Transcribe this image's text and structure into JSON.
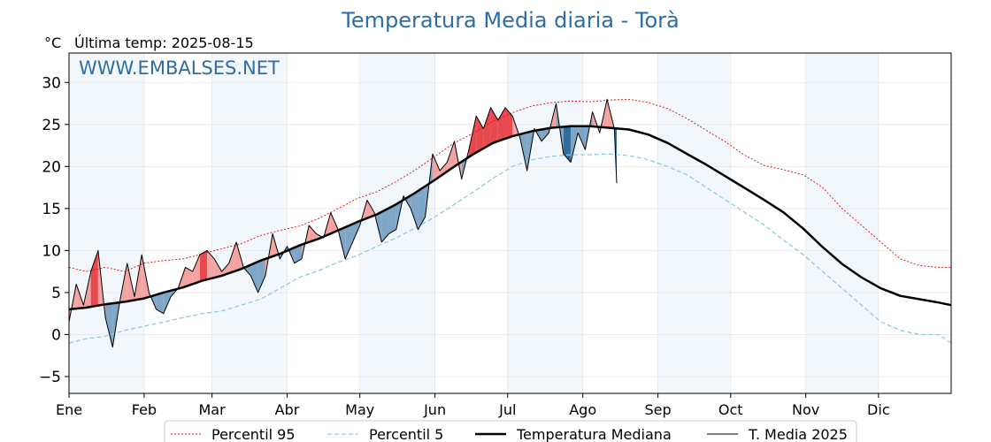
{
  "header": {
    "title": "Temperatura Media diaria - Torà",
    "unit_label": "°C",
    "last_temp_label": "Última temp: 2025-08-15",
    "watermark": "WWW.EMBALSES.NET"
  },
  "colors": {
    "title": "#2e6da4",
    "p95": "#e8000b",
    "p5": "#8ecbdb",
    "median": "#000000",
    "current": "#000000",
    "above_fill": "#f4a3a3",
    "above_fill_strong": "#e8494f",
    "below_fill": "#7fa6c6",
    "below_fill_strong": "#2f6c9e",
    "month_band": "#f2f7fc",
    "watermark": "#2e6da4"
  },
  "chart_data": {
    "type": "line",
    "title": "Temperatura Media diaria - Torà",
    "ylabel": "°C",
    "xlabel": "",
    "ylim": [
      -7,
      33.5
    ],
    "xlim": [
      1,
      365
    ],
    "yticks": [
      -5,
      0,
      5,
      10,
      15,
      20,
      25,
      30
    ],
    "grid": true,
    "legend_position": "bottom",
    "months": [
      {
        "label": "Ene",
        "day": 1
      },
      {
        "label": "Feb",
        "day": 32
      },
      {
        "label": "Mar",
        "day": 60
      },
      {
        "label": "Abr",
        "day": 91
      },
      {
        "label": "May",
        "day": 121
      },
      {
        "label": "Jun",
        "day": 152
      },
      {
        "label": "Jul",
        "day": 182
      },
      {
        "label": "Ago",
        "day": 213
      },
      {
        "label": "Sep",
        "day": 244
      },
      {
        "label": "Oct",
        "day": 274
      },
      {
        "label": "Nov",
        "day": 305
      },
      {
        "label": "Dic",
        "day": 335
      }
    ],
    "series": [
      {
        "name": "Percentil 95",
        "key": "p95",
        "x": [
          1,
          8,
          16,
          24,
          32,
          40,
          48,
          56,
          64,
          72,
          80,
          88,
          96,
          104,
          112,
          120,
          128,
          136,
          144,
          152,
          160,
          168,
          176,
          184,
          192,
          200,
          208,
          216,
          224,
          232,
          240,
          248,
          256,
          264,
          272,
          280,
          288,
          296,
          304,
          312,
          320,
          328,
          336,
          344,
          352,
          360,
          365
        ],
        "y": [
          8.0,
          7.5,
          8.0,
          7.5,
          8.5,
          8.8,
          9.0,
          9.6,
          10.2,
          10.8,
          11.8,
          12.4,
          12.9,
          13.8,
          15.0,
          16.2,
          17.0,
          18.2,
          19.6,
          21.2,
          22.8,
          24.0,
          25.4,
          26.4,
          27.2,
          27.6,
          27.8,
          27.7,
          27.9,
          28.0,
          27.6,
          26.9,
          25.7,
          24.3,
          22.9,
          21.3,
          20.1,
          19.6,
          19.0,
          17.5,
          15.0,
          13.0,
          11.0,
          9.0,
          8.2,
          8.0,
          8.0
        ]
      },
      {
        "name": "Percentil 5",
        "key": "p5",
        "x": [
          1,
          8,
          16,
          24,
          32,
          40,
          48,
          56,
          64,
          72,
          80,
          88,
          96,
          104,
          112,
          120,
          128,
          136,
          144,
          152,
          160,
          168,
          176,
          184,
          192,
          200,
          208,
          216,
          224,
          232,
          240,
          248,
          256,
          264,
          272,
          280,
          288,
          296,
          304,
          312,
          320,
          328,
          336,
          344,
          352,
          360,
          365
        ],
        "y": [
          -1.0,
          -0.5,
          -0.2,
          0.5,
          1.0,
          1.5,
          2.0,
          2.5,
          2.8,
          3.5,
          4.2,
          5.5,
          6.8,
          7.6,
          8.6,
          9.4,
          10.5,
          11.5,
          12.7,
          14.0,
          15.5,
          17.0,
          18.6,
          20.0,
          20.8,
          21.2,
          21.4,
          21.4,
          21.5,
          21.3,
          20.8,
          20.0,
          19.0,
          17.5,
          16.0,
          14.5,
          13.0,
          11.2,
          9.5,
          7.5,
          5.5,
          3.5,
          1.5,
          0.5,
          0.0,
          0.0,
          -1.0
        ]
      },
      {
        "name": "Temperatura Mediana",
        "key": "median",
        "x": [
          1,
          8,
          16,
          24,
          32,
          40,
          48,
          56,
          64,
          72,
          80,
          88,
          96,
          104,
          112,
          120,
          128,
          136,
          144,
          152,
          160,
          168,
          176,
          184,
          192,
          200,
          208,
          216,
          224,
          232,
          240,
          248,
          256,
          264,
          272,
          280,
          288,
          296,
          304,
          312,
          320,
          328,
          336,
          344,
          352,
          360,
          365
        ],
        "y": [
          3.0,
          3.2,
          3.6,
          3.9,
          4.3,
          5.0,
          5.6,
          6.4,
          7.0,
          7.8,
          8.8,
          9.6,
          10.6,
          11.4,
          12.4,
          13.4,
          14.3,
          15.5,
          16.9,
          18.4,
          20.0,
          21.5,
          22.8,
          23.6,
          24.2,
          24.6,
          24.8,
          24.8,
          24.6,
          24.4,
          23.8,
          22.8,
          21.5,
          20.2,
          18.8,
          17.4,
          16.0,
          14.5,
          12.6,
          10.4,
          8.4,
          6.8,
          5.5,
          4.6,
          4.2,
          3.8,
          3.5
        ]
      },
      {
        "name": "T. Media 2025",
        "key": "current",
        "x": [
          1,
          4,
          7,
          10,
          13,
          16,
          19,
          22,
          25,
          28,
          31,
          34,
          37,
          40,
          43,
          46,
          49,
          52,
          55,
          58,
          61,
          64,
          67,
          70,
          73,
          76,
          79,
          82,
          85,
          88,
          91,
          94,
          97,
          100,
          103,
          106,
          109,
          112,
          115,
          118,
          121,
          124,
          127,
          130,
          133,
          136,
          139,
          142,
          145,
          148,
          151,
          154,
          157,
          160,
          163,
          166,
          169,
          172,
          175,
          178,
          181,
          184,
          187,
          190,
          193,
          196,
          199,
          202,
          205,
          208,
          211,
          214,
          217,
          220,
          223,
          226,
          227
        ],
        "y": [
          1.5,
          6.0,
          3.5,
          7.5,
          10.0,
          2.0,
          -1.5,
          4.0,
          8.5,
          4.5,
          9.5,
          5.0,
          3.0,
          2.5,
          4.5,
          5.5,
          8.0,
          7.5,
          9.5,
          10.0,
          9.0,
          7.5,
          8.5,
          11.0,
          8.0,
          7.0,
          5.0,
          7.0,
          12.0,
          9.0,
          10.5,
          8.5,
          9.0,
          13.0,
          12.0,
          11.5,
          14.5,
          12.5,
          9.0,
          11.0,
          13.0,
          16.0,
          14.5,
          11.0,
          12.0,
          12.5,
          16.5,
          15.0,
          12.5,
          14.0,
          21.5,
          19.5,
          20.5,
          23.0,
          18.5,
          22.0,
          26.0,
          24.5,
          27.0,
          25.5,
          27.0,
          26.0,
          23.5,
          19.5,
          24.5,
          23.0,
          24.0,
          27.5,
          21.5,
          20.5,
          24.0,
          22.0,
          26.5,
          24.0,
          28.0,
          24.5,
          18.0
        ]
      }
    ]
  }
}
